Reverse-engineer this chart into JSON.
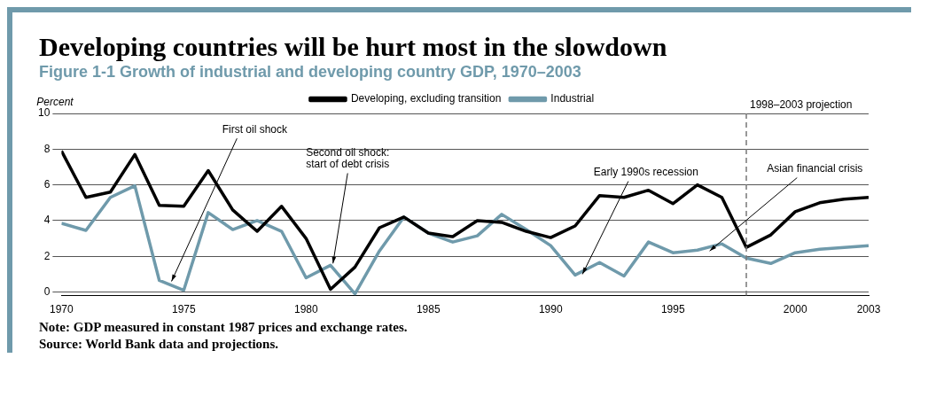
{
  "chart_data": {
    "type": "line",
    "title": "Developing countries will be hurt most in the slowdown",
    "subtitle": "Figure 1-1 Growth of industrial and developing country GDP, 1970–2003",
    "ylabel": "Percent",
    "x": [
      1970,
      1971,
      1972,
      1973,
      1974,
      1975,
      1976,
      1977,
      1978,
      1979,
      1980,
      1981,
      1982,
      1983,
      1984,
      1985,
      1986,
      1987,
      1988,
      1989,
      1990,
      1991,
      1992,
      1993,
      1994,
      1995,
      1996,
      1997,
      1998,
      1999,
      2000,
      2001,
      2002,
      2003
    ],
    "series": [
      {
        "name": "Developing, excluding transition",
        "color": "#000000",
        "values": [
          7.9,
          5.3,
          5.6,
          7.7,
          4.85,
          4.8,
          6.8,
          4.6,
          3.4,
          4.8,
          3.0,
          0.15,
          1.4,
          3.6,
          4.2,
          3.3,
          3.1,
          4.0,
          3.9,
          3.4,
          3.05,
          3.7,
          5.4,
          5.3,
          5.7,
          4.95,
          6.0,
          5.3,
          2.5,
          3.2,
          4.5,
          5.0,
          5.2,
          5.3
        ]
      },
      {
        "name": "Industrial",
        "color": "#6f9aab",
        "values": [
          3.85,
          3.45,
          5.3,
          5.95,
          0.65,
          0.1,
          4.45,
          3.5,
          4.0,
          3.4,
          0.8,
          1.5,
          -0.1,
          2.3,
          4.2,
          3.3,
          2.8,
          3.15,
          4.35,
          3.5,
          2.6,
          0.95,
          1.65,
          0.9,
          2.8,
          2.2,
          2.35,
          2.7,
          1.9,
          1.6,
          2.2,
          2.4,
          2.5,
          2.6
        ]
      }
    ],
    "xlim": [
      1970,
      2003
    ],
    "xticks": [
      1970,
      1975,
      1980,
      1985,
      1990,
      1995,
      2000,
      2003
    ],
    "ylim": [
      -0.2,
      10
    ],
    "yticks": [
      0,
      2,
      4,
      6,
      8,
      10
    ],
    "grid": "y",
    "legend": "top",
    "marker": "none",
    "line_style": "solid",
    "ref_lines": [
      {
        "axis": "x",
        "value": 1998,
        "label": "1998–2003 projection",
        "color": "#777777",
        "line_style": "dashed"
      }
    ],
    "annotations": [
      {
        "text": "First oil shock",
        "x": 1974.5,
        "y": 0.6
      },
      {
        "text": "Second oil shock:\nstart of debt crisis",
        "x": 1981.1,
        "y": 1.6
      },
      {
        "text": "Early 1990s recession",
        "x": 1991.3,
        "y": 1.0
      },
      {
        "text": "Asian financial crisis",
        "x": 1996.5,
        "y": 2.3
      },
      "Note: GDP measured in constant 1987 prices and exchange rates.",
      "Source: World Bank data and projections."
    ]
  }
}
